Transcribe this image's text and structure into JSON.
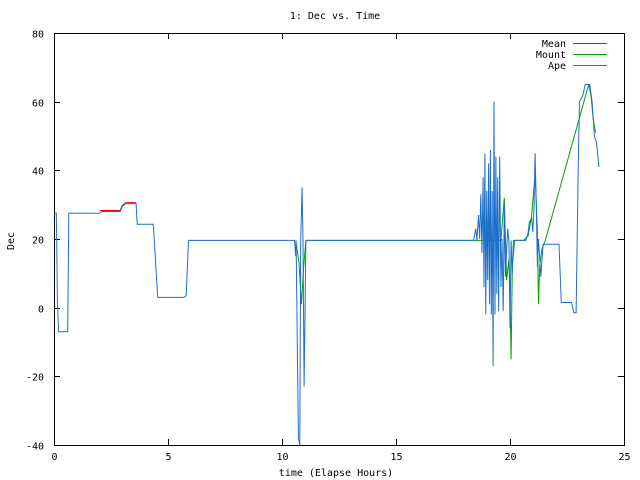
{
  "chart_data": {
    "type": "line",
    "title": "1: Dec vs. Time",
    "xlabel": "time (Elapse Hours)",
    "ylabel": "Dec",
    "xlim": [
      0,
      25
    ],
    "ylim": [
      -40,
      80
    ],
    "xticks": [
      0,
      5,
      10,
      15,
      20,
      25
    ],
    "yticks": [
      -40,
      -20,
      0,
      20,
      40,
      60,
      80
    ],
    "legend_position": "top-right",
    "grid": false,
    "series": [
      {
        "name": "Mean",
        "color": "#ff0000",
        "points": [
          [
            2.0,
            28.3
          ],
          [
            2.9,
            28.3
          ],
          [
            3.0,
            29.8
          ],
          [
            3.15,
            30.6
          ],
          [
            3.5,
            30.6
          ],
          [
            3.6,
            30.6
          ]
        ]
      },
      {
        "name": "Mount",
        "color": "#00a000",
        "points": [
          [
            10.6,
            19.6
          ],
          [
            10.75,
            13.0
          ],
          [
            10.85,
            1.0
          ],
          [
            10.95,
            12.0
          ],
          [
            11.05,
            19.6
          ],
          [
            19.6,
            19.6
          ],
          [
            19.75,
            32.0
          ],
          [
            19.85,
            8.0
          ],
          [
            19.95,
            14.0
          ],
          [
            20.0,
            4.0
          ],
          [
            20.05,
            -15.0
          ],
          [
            20.1,
            12.0
          ],
          [
            20.2,
            19.6
          ],
          [
            20.6,
            19.6
          ],
          [
            20.8,
            21.0
          ],
          [
            20.95,
            27.0
          ],
          [
            21.1,
            39.0
          ],
          [
            21.2,
            22.0
          ],
          [
            21.25,
            1.0
          ],
          [
            21.3,
            12.0
          ],
          [
            21.4,
            17.0
          ],
          [
            21.55,
            19.6
          ],
          [
            23.45,
            65.0
          ],
          [
            23.55,
            62.0
          ],
          [
            23.65,
            55.0
          ],
          [
            23.75,
            51.0
          ]
        ]
      },
      {
        "name": "Ape",
        "color": "#1e6fc8",
        "points": [
          [
            0.0,
            27.5
          ],
          [
            0.1,
            27.5
          ],
          [
            0.12,
            19.6
          ],
          [
            0.15,
            2.0
          ],
          [
            0.2,
            -7.0
          ],
          [
            0.6,
            -7.0
          ],
          [
            0.65,
            27.5
          ],
          [
            2.0,
            27.5
          ],
          [
            2.1,
            28.0
          ],
          [
            2.9,
            28.0
          ],
          [
            3.0,
            29.5
          ],
          [
            3.15,
            30.3
          ],
          [
            3.6,
            30.3
          ],
          [
            3.65,
            24.3
          ],
          [
            4.35,
            24.3
          ],
          [
            4.4,
            19.6
          ],
          [
            4.55,
            3.0
          ],
          [
            5.7,
            3.0
          ],
          [
            5.8,
            3.5
          ],
          [
            5.9,
            19.6
          ],
          [
            10.55,
            19.6
          ],
          [
            10.6,
            15.0
          ],
          [
            10.62,
            19.6
          ],
          [
            10.72,
            -38.0
          ],
          [
            10.78,
            -42.0
          ],
          [
            10.82,
            19.6
          ],
          [
            10.88,
            35.0
          ],
          [
            10.92,
            19.6
          ],
          [
            10.97,
            -23.0
          ],
          [
            11.05,
            19.6
          ],
          [
            18.4,
            19.6
          ],
          [
            18.5,
            23.0
          ],
          [
            18.55,
            19.6
          ],
          [
            18.62,
            27.0
          ],
          [
            18.67,
            20.0
          ],
          [
            18.72,
            33.0
          ],
          [
            18.77,
            16.0
          ],
          [
            18.82,
            38.0
          ],
          [
            18.86,
            6.0
          ],
          [
            18.9,
            45.0
          ],
          [
            18.94,
            -2.0
          ],
          [
            18.98,
            34.0
          ],
          [
            19.02,
            8.0
          ],
          [
            19.06,
            42.0
          ],
          [
            19.1,
            1.0
          ],
          [
            19.14,
            46.0
          ],
          [
            19.18,
            -2.0
          ],
          [
            19.22,
            34.0
          ],
          [
            19.26,
            -17.0
          ],
          [
            19.3,
            60.0
          ],
          [
            19.34,
            -2.0
          ],
          [
            19.38,
            44.0
          ],
          [
            19.42,
            4.0
          ],
          [
            19.46,
            38.0
          ],
          [
            19.5,
            -1.0
          ],
          [
            19.55,
            44.0
          ],
          [
            19.6,
            6.0
          ],
          [
            19.65,
            20.0
          ],
          [
            19.7,
            -1.0
          ],
          [
            19.75,
            30.0
          ],
          [
            19.8,
            9.0
          ],
          [
            19.9,
            23.0
          ],
          [
            19.95,
            19.6
          ],
          [
            20.0,
            -6.0
          ],
          [
            20.05,
            19.6
          ],
          [
            20.1,
            10.0
          ],
          [
            20.15,
            19.6
          ],
          [
            20.7,
            19.6
          ],
          [
            20.8,
            22.0
          ],
          [
            20.85,
            25.0
          ],
          [
            20.95,
            26.0
          ],
          [
            21.0,
            22.0
          ],
          [
            21.05,
            28.0
          ],
          [
            21.1,
            45.0
          ],
          [
            21.15,
            31.0
          ],
          [
            21.2,
            12.0
          ],
          [
            21.25,
            20.0
          ],
          [
            21.35,
            9.0
          ],
          [
            21.45,
            18.5
          ],
          [
            22.15,
            18.5
          ],
          [
            22.25,
            1.5
          ],
          [
            22.7,
            1.5
          ],
          [
            22.8,
            -1.5
          ],
          [
            22.9,
            -1.5
          ],
          [
            23.0,
            44.0
          ],
          [
            23.05,
            60.0
          ],
          [
            23.2,
            62.0
          ],
          [
            23.3,
            65.0
          ],
          [
            23.5,
            65.0
          ],
          [
            23.6,
            60.0
          ],
          [
            23.7,
            50.0
          ],
          [
            23.8,
            48.0
          ],
          [
            23.9,
            41.0
          ]
        ]
      }
    ]
  }
}
